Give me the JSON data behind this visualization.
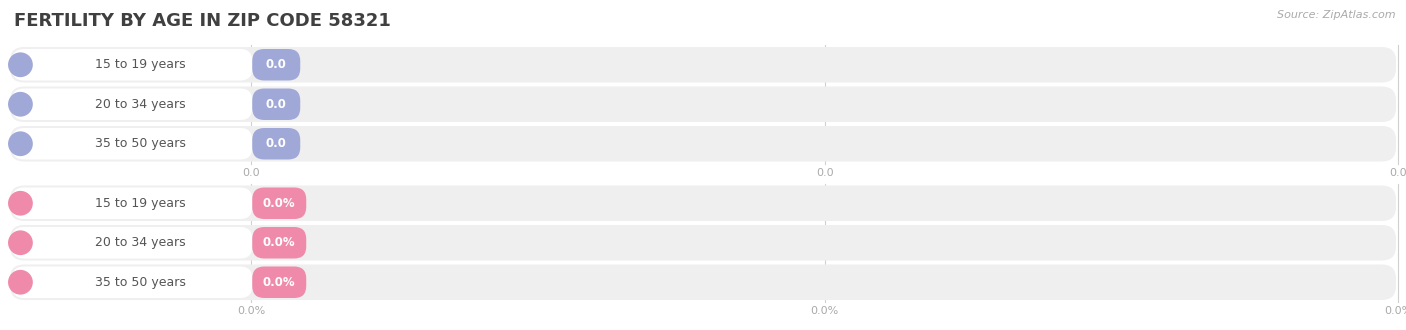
{
  "title": "FERTILITY BY AGE IN ZIP CODE 58321",
  "source": "Source: ZipAtlas.com",
  "background_color": "#ffffff",
  "top_section": {
    "rows": [
      {
        "label": "15 to 19 years",
        "value": 0.0,
        "display": "0.0"
      },
      {
        "label": "20 to 34 years",
        "value": 0.0,
        "display": "0.0"
      },
      {
        "label": "35 to 50 years",
        "value": 0.0,
        "display": "0.0"
      }
    ],
    "circle_color": "#a0a8d8",
    "badge_color": "#a0a8d8",
    "badge_text_color": "#ffffff",
    "tick_suffix": ""
  },
  "bottom_section": {
    "rows": [
      {
        "label": "15 to 19 years",
        "value": 0.0,
        "display": "0.0%"
      },
      {
        "label": "20 to 34 years",
        "value": 0.0,
        "display": "0.0%"
      },
      {
        "label": "35 to 50 years",
        "value": 0.0,
        "display": "0.0%"
      }
    ],
    "circle_color": "#f08aaa",
    "badge_color": "#f08aaa",
    "badge_text_color": "#ffffff",
    "tick_suffix": "%"
  },
  "row_bg_color": "#efefef",
  "label_pill_color": "#ffffff",
  "grid_line_color": "#d0d0d0",
  "title_color": "#404040",
  "label_text_color": "#555555",
  "tick_text_color": "#aaaaaa",
  "fig_width": 14.06,
  "fig_height": 3.3
}
